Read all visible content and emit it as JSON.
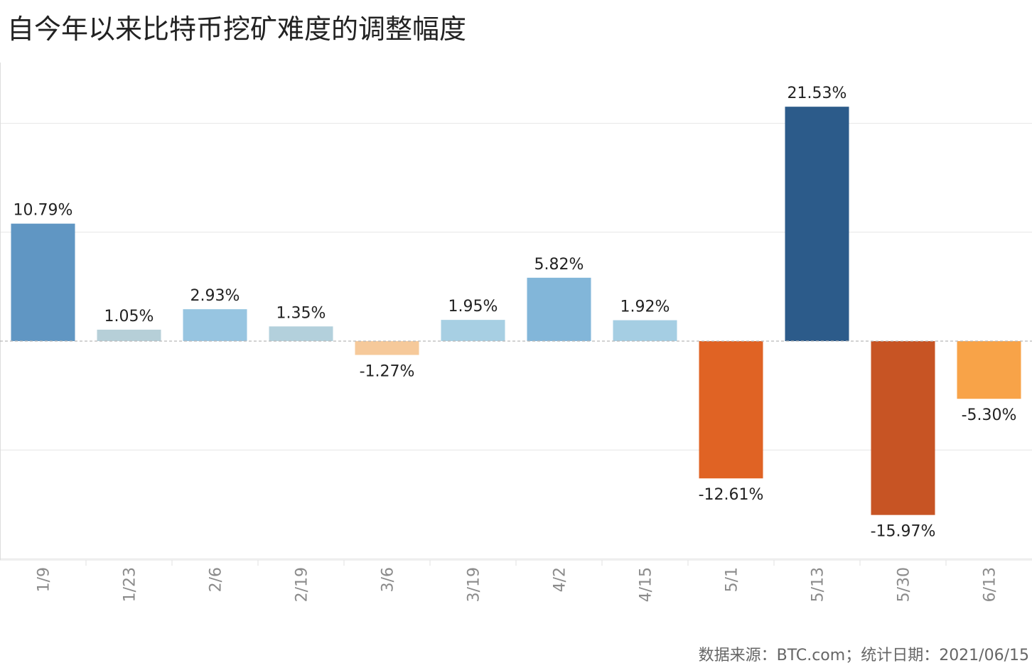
{
  "title": "自今年以来比特币挖矿难度的调整幅度",
  "source": "数据来源：BTC.com；统计日期：2021/06/15",
  "chart_data": {
    "type": "bar",
    "title": "自今年以来比特币挖矿难度的调整幅度",
    "xlabel": "",
    "ylabel": "",
    "ylim": [
      -20,
      25
    ],
    "grid": true,
    "categories": [
      "1/9",
      "1/23",
      "2/6",
      "2/19",
      "3/6",
      "3/19",
      "4/2",
      "4/15",
      "5/1",
      "5/13",
      "5/30",
      "6/13"
    ],
    "values": [
      10.79,
      1.05,
      2.93,
      1.35,
      -1.27,
      1.95,
      5.82,
      1.92,
      -12.61,
      21.53,
      -15.97,
      -5.3
    ],
    "data_labels": [
      "10.79%",
      "1.05%",
      "2.93%",
      "1.35%",
      "-1.27%",
      "1.95%",
      "5.82%",
      "1.92%",
      "-12.61%",
      "21.53%",
      "-15.97%",
      "-5.30%"
    ],
    "colors": [
      "#6096c3",
      "#b6cfd8",
      "#97c5e1",
      "#b3d0dc",
      "#f6c99a",
      "#a7cfe3",
      "#82b6d9",
      "#a5cee3",
      "#e06324",
      "#2c5b8a",
      "#c75424",
      "#f8a348"
    ]
  }
}
